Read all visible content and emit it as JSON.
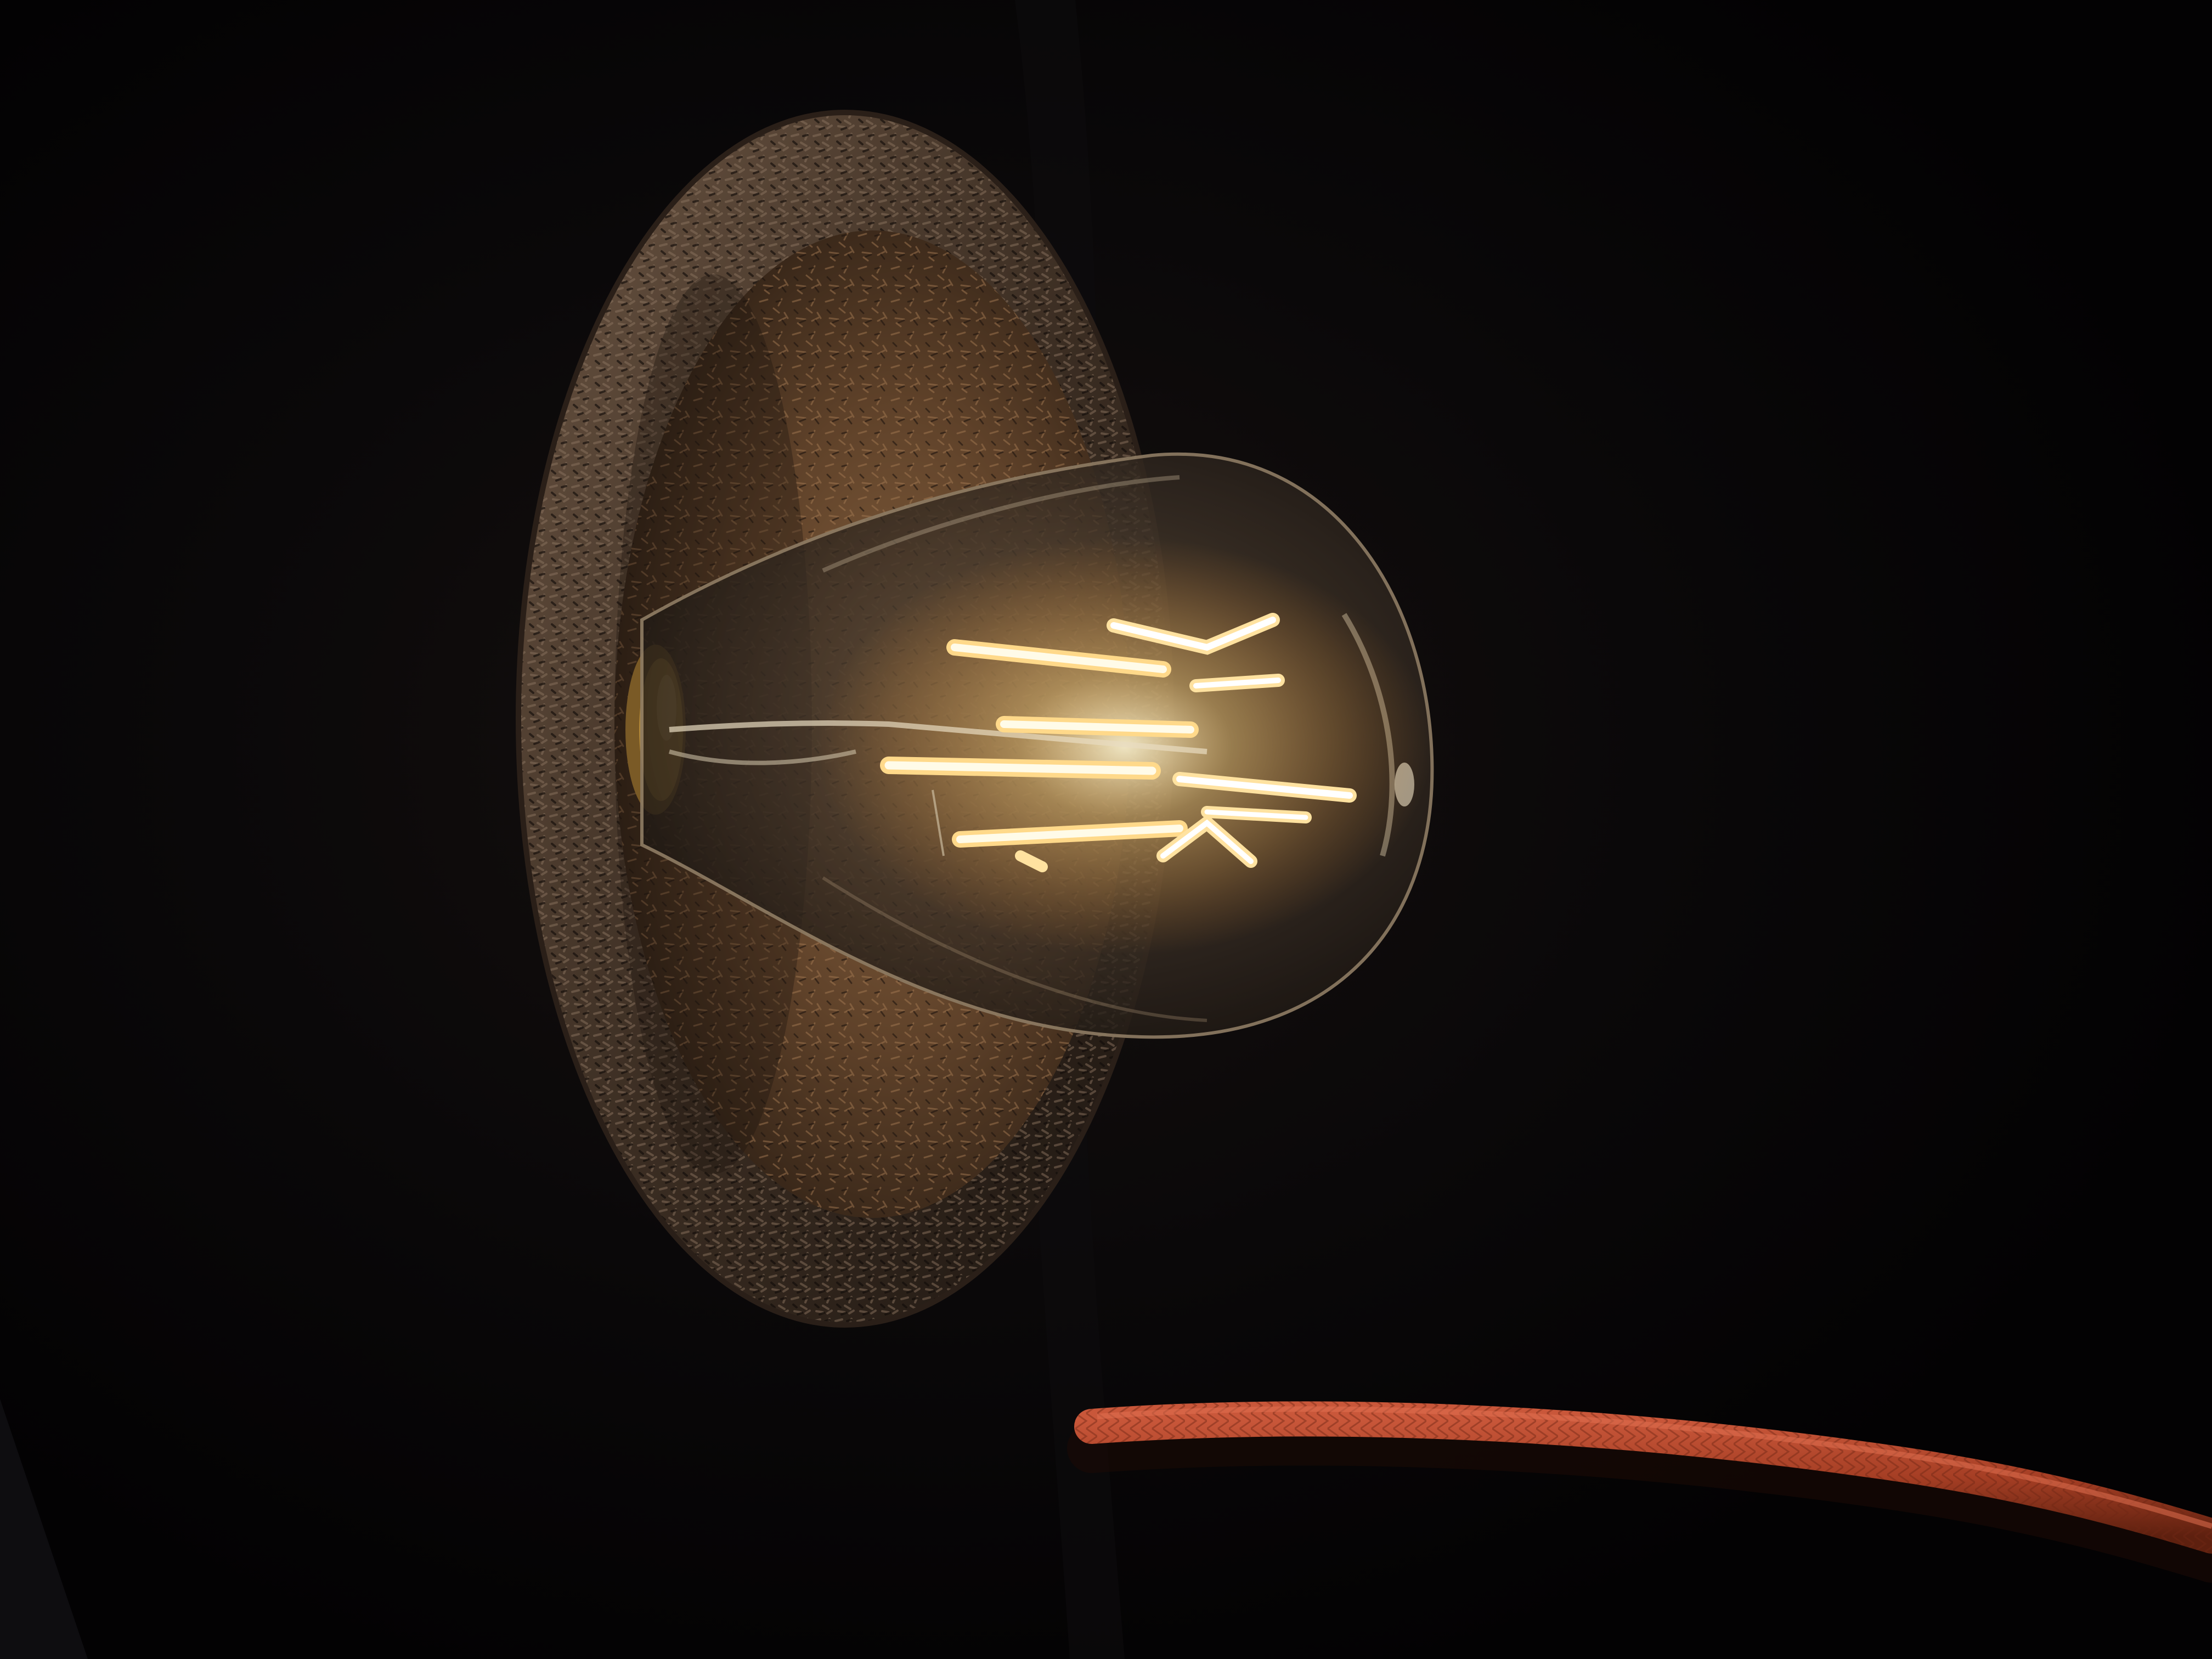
{
  "photo": {
    "subject": "pendant-lamp",
    "colors": {
      "background": "#050405",
      "backdrop_fold": "#0d0b0e",
      "shade_outer": "#2a1f18",
      "shade_rim": "#5a4636",
      "shade_inner": "#6b4a30",
      "shade_inner_dark": "#2e2117",
      "bulb_glass": "#3b3026",
      "filament": "#fff4c8",
      "filament_glow": "#ffc35a",
      "socket": "#b48a3a",
      "cord": "#b5452a",
      "cord_dark": "#6e2614"
    }
  }
}
